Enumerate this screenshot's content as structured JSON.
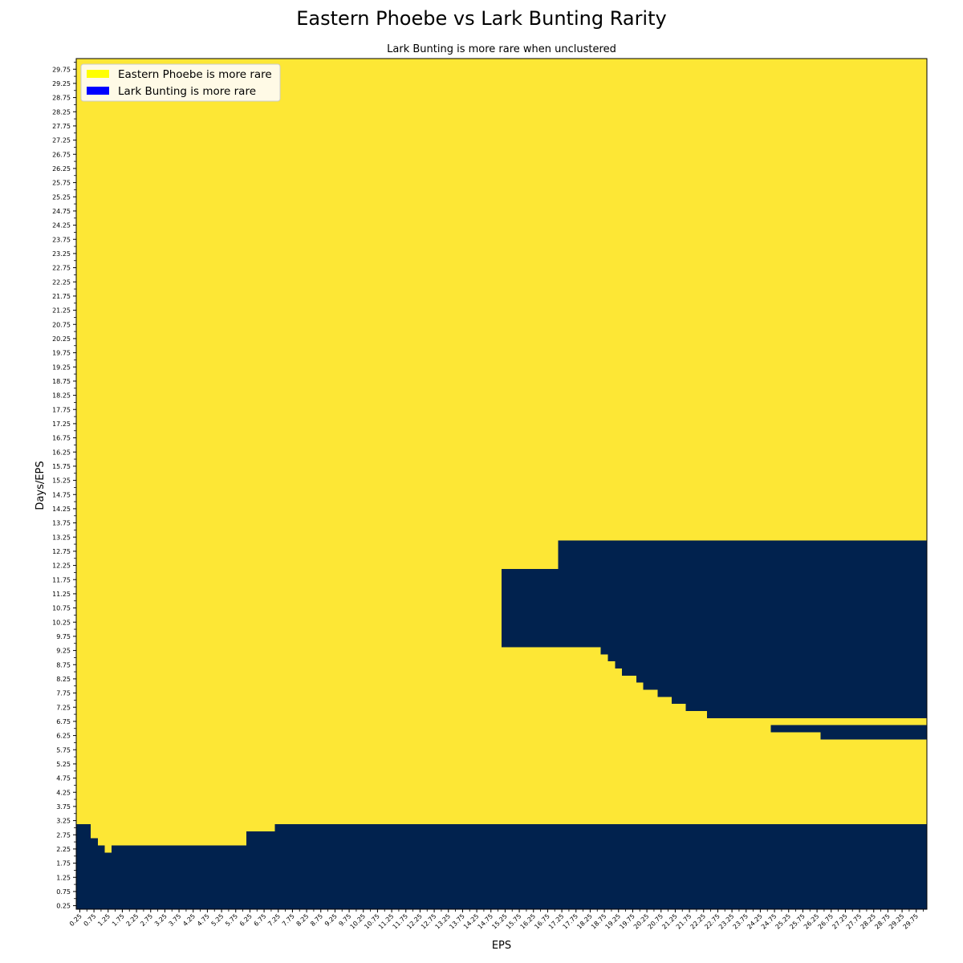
{
  "chart_data": {
    "type": "heatmap",
    "title": "Eastern Phoebe vs Lark Bunting Rarity",
    "subtitle": "Lark Bunting is more rare when unclustered",
    "xlabel": "EPS",
    "ylabel": "Days/EPS",
    "x_start": 0.25,
    "x_step": 0.25,
    "x_count": 120,
    "y_start": 0.25,
    "y_step": 0.25,
    "y_count": 120,
    "x_tick_labels": [
      "0.25",
      "0.75",
      "1.25",
      "1.75",
      "2.25",
      "2.75",
      "3.25",
      "3.75",
      "4.25",
      "4.75",
      "5.25",
      "5.75",
      "6.25",
      "6.75",
      "7.25",
      "7.75",
      "8.25",
      "8.75",
      "9.25",
      "9.75",
      "10.25",
      "10.75",
      "11.25",
      "11.75",
      "12.25",
      "12.75",
      "13.25",
      "13.75",
      "14.25",
      "14.75",
      "15.25",
      "15.75",
      "16.25",
      "16.75",
      "17.25",
      "17.75",
      "18.25",
      "18.75",
      "19.25",
      "19.75",
      "20.25",
      "20.75",
      "21.25",
      "21.75",
      "22.25",
      "22.75",
      "23.25",
      "23.75",
      "24.25",
      "24.75",
      "25.25",
      "25.75",
      "26.25",
      "26.75",
      "27.25",
      "27.75",
      "28.25",
      "28.75",
      "29.25",
      "29.75"
    ],
    "y_tick_labels": [
      "0.25",
      "0.75",
      "1.25",
      "1.75",
      "2.25",
      "2.75",
      "3.25",
      "3.75",
      "4.25",
      "4.75",
      "5.25",
      "5.75",
      "6.25",
      "6.75",
      "7.25",
      "7.75",
      "8.25",
      "8.75",
      "9.25",
      "9.75",
      "10.25",
      "10.75",
      "11.25",
      "11.75",
      "12.25",
      "12.75",
      "13.25",
      "13.75",
      "14.25",
      "14.75",
      "15.25",
      "15.75",
      "16.25",
      "16.75",
      "17.25",
      "17.75",
      "18.25",
      "18.75",
      "19.25",
      "19.75",
      "20.25",
      "20.75",
      "21.25",
      "21.75",
      "22.25",
      "22.75",
      "23.25",
      "23.75",
      "24.25",
      "24.75",
      "25.25",
      "25.75",
      "26.25",
      "26.75",
      "27.25",
      "27.75",
      "28.25",
      "28.75",
      "29.25",
      "29.75"
    ],
    "default_category": "Eastern Phoebe is more rare",
    "lark_more_rare_cells": [
      {
        "x_from": 0.25,
        "x_to": 0.5,
        "y_from": 0.25,
        "y_to": 3.0
      },
      {
        "x_from": 0.75,
        "x_to": 0.75,
        "y_from": 0.25,
        "y_to": 2.5
      },
      {
        "x_from": 1.0,
        "x_to": 1.0,
        "y_from": 0.25,
        "y_to": 2.25
      },
      {
        "x_from": 1.25,
        "x_to": 1.25,
        "y_from": 0.25,
        "y_to": 2.0
      },
      {
        "x_from": 1.5,
        "x_to": 6.0,
        "y_from": 0.25,
        "y_to": 2.25
      },
      {
        "x_from": 6.25,
        "x_to": 7.0,
        "y_from": 0.25,
        "y_to": 2.75
      },
      {
        "x_from": 7.25,
        "x_to": 30.0,
        "y_from": 0.25,
        "y_to": 3.0
      },
      {
        "x_from": 15.25,
        "x_to": 17.0,
        "y_from": 9.5,
        "y_to": 12.0
      },
      {
        "x_from": 17.25,
        "x_to": 30.0,
        "y_from": 9.5,
        "y_to": 13.0
      },
      {
        "x_from": 18.75,
        "x_to": 30.0,
        "y_from": 9.25,
        "y_to": 9.25
      },
      {
        "x_from": 19.0,
        "x_to": 30.0,
        "y_from": 9.0,
        "y_to": 9.0
      },
      {
        "x_from": 19.25,
        "x_to": 30.0,
        "y_from": 8.75,
        "y_to": 8.75
      },
      {
        "x_from": 19.5,
        "x_to": 30.0,
        "y_from": 8.5,
        "y_to": 8.5
      },
      {
        "x_from": 20.0,
        "x_to": 30.0,
        "y_from": 8.25,
        "y_to": 8.25
      },
      {
        "x_from": 20.25,
        "x_to": 30.0,
        "y_from": 8.0,
        "y_to": 8.0
      },
      {
        "x_from": 20.75,
        "x_to": 30.0,
        "y_from": 7.75,
        "y_to": 7.75
      },
      {
        "x_from": 21.25,
        "x_to": 30.0,
        "y_from": 7.5,
        "y_to": 7.5
      },
      {
        "x_from": 21.75,
        "x_to": 30.0,
        "y_from": 7.25,
        "y_to": 7.25
      },
      {
        "x_from": 22.5,
        "x_to": 30.0,
        "y_from": 7.0,
        "y_to": 7.0
      },
      {
        "x_from": 24.75,
        "x_to": 30.0,
        "y_from": 6.5,
        "y_to": 6.5
      },
      {
        "x_from": 26.5,
        "x_to": 30.0,
        "y_from": 6.25,
        "y_to": 6.25
      }
    ],
    "colors": {
      "eastern_more_rare": "#fde735",
      "lark_more_rare": "#01224e",
      "legend_eastern": "#ffff00",
      "legend_lark": "#0000ff",
      "legend_background": "#fffae6"
    },
    "legend": {
      "position": "upper-left",
      "items": [
        {
          "label": "Eastern Phoebe is more rare",
          "color_key": "legend_eastern"
        },
        {
          "label": "Lark Bunting is more rare",
          "color_key": "legend_lark"
        }
      ]
    }
  }
}
